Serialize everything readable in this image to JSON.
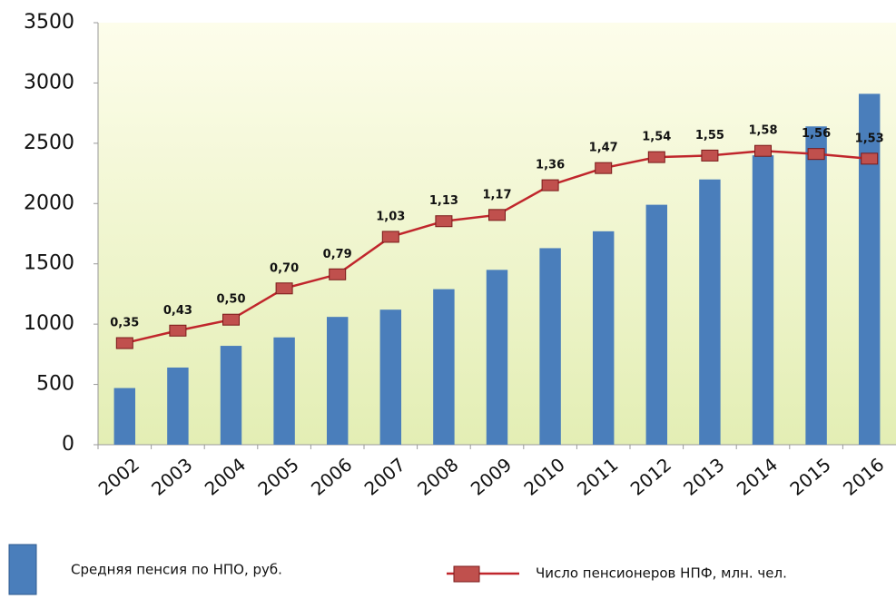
{
  "chart_data": {
    "type": "bar_line",
    "categories": [
      "2002",
      "2003",
      "2004",
      "2005",
      "2006",
      "2007",
      "2008",
      "2009",
      "2010",
      "2011",
      "2012",
      "2013",
      "2014",
      "2015",
      "2016"
    ],
    "series": [
      {
        "name": "Средняя пенсия по НПО, руб.",
        "type": "bar",
        "color": "#4a7ebb",
        "values": [
          470,
          640,
          820,
          890,
          1060,
          1120,
          1290,
          1450,
          1630,
          1770,
          1990,
          2200,
          2400,
          2640,
          2910
        ]
      },
      {
        "name": "Число пенсионеров НПФ, млн. чел.",
        "type": "line",
        "axis": "y2",
        "color": "#c0262c",
        "marker_color": "#c0504d",
        "values": [
          0.35,
          0.43,
          0.5,
          0.7,
          0.79,
          1.03,
          1.13,
          1.17,
          1.36,
          1.47,
          1.54,
          1.55,
          1.58,
          1.56,
          1.53
        ],
        "value_labels": [
          "0,35",
          "0,43",
          "0,50",
          "0,70",
          "0,79",
          "1,03",
          "1,13",
          "1,17",
          "1,36",
          "1,47",
          "1,54",
          "1,55",
          "1,58",
          "1,56",
          "1,53"
        ]
      }
    ],
    "ylim": [
      0,
      3500
    ],
    "yticks": [
      0,
      500,
      1000,
      1500,
      2000,
      2500,
      3000,
      3500
    ],
    "y2lim": [
      -0.3,
      2.4
    ],
    "grid": false
  }
}
